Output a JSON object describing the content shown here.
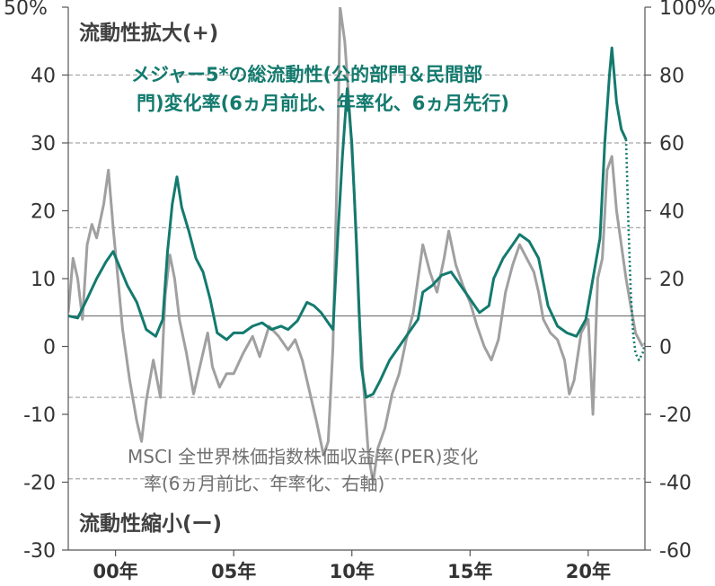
{
  "chart_data": {
    "type": "line",
    "title": "",
    "annotations": {
      "top": "流動性拡大(+)",
      "bottom": "流動性縮小(ー)",
      "green_label_line1": "メジャー5*の総流動性(公的部門＆民間部",
      "green_label_line2": "門)変化率(6ヵ月前比、年率化、6ヵ月先行)",
      "gray_label_line1": "MSCI 全世界株価指数株価収益率(PER)変化",
      "gray_label_line2": "率(6ヵ月前比、年率化、右軸)"
    },
    "colors": {
      "green": "#137a6e",
      "gray": "#a0a0a0"
    },
    "x_axis": {
      "range": [
        1998.0,
        2022.4
      ],
      "ticks": [
        {
          "value": 2000,
          "label": "00年"
        },
        {
          "value": 2005,
          "label": "05年"
        },
        {
          "value": 2010,
          "label": "10年"
        },
        {
          "value": 2015,
          "label": "15年"
        },
        {
          "value": 2020,
          "label": "20年"
        }
      ]
    },
    "y_left": {
      "range": [
        -30,
        50
      ],
      "ticks": [
        {
          "value": 50,
          "label": "50%"
        },
        {
          "value": 40,
          "label": "40"
        },
        {
          "value": 30,
          "label": "30"
        },
        {
          "value": 20,
          "label": "20"
        },
        {
          "value": 10,
          "label": "10"
        },
        {
          "value": 0,
          "label": "0"
        },
        {
          "value": -10,
          "label": "-10"
        },
        {
          "value": -20,
          "label": "-20"
        },
        {
          "value": -30,
          "label": "-30"
        }
      ]
    },
    "y_right": {
      "range": [
        -60,
        100
      ],
      "ticks": [
        {
          "value": 100,
          "label": "100%"
        },
        {
          "value": 80,
          "label": "80"
        },
        {
          "value": 60,
          "label": "60"
        },
        {
          "value": 40,
          "label": "40"
        },
        {
          "value": 20,
          "label": "20"
        },
        {
          "value": 0,
          "label": "0"
        },
        {
          "value": -20,
          "label": "-20"
        },
        {
          "value": -40,
          "label": "-40"
        },
        {
          "value": -60,
          "label": "-60"
        }
      ]
    },
    "grid": {
      "dashed_left_values": [
        40,
        30,
        17.5,
        -7.5,
        -19.5
      ],
      "solid_left_value": 4.5
    },
    "series": [
      {
        "axis": "left",
        "color": "#137a6e",
        "points": [
          [
            1998.0,
            4.5
          ],
          [
            1998.4,
            4.2
          ],
          [
            1998.8,
            7.0
          ],
          [
            1999.2,
            10.0
          ],
          [
            1999.6,
            12.5
          ],
          [
            1999.9,
            14.0
          ],
          [
            2000.2,
            11.5
          ],
          [
            2000.5,
            9.0
          ],
          [
            2000.9,
            6.5
          ],
          [
            2001.3,
            2.5
          ],
          [
            2001.7,
            1.5
          ],
          [
            2002.0,
            4.0
          ],
          [
            2002.2,
            14.0
          ],
          [
            2002.4,
            21.0
          ],
          [
            2002.6,
            25.0
          ],
          [
            2002.8,
            20.5
          ],
          [
            2003.1,
            17.0
          ],
          [
            2003.4,
            13.0
          ],
          [
            2003.7,
            11.0
          ],
          [
            2004.0,
            7.0
          ],
          [
            2004.3,
            2.0
          ],
          [
            2004.7,
            1.0
          ],
          [
            2005.0,
            2.0
          ],
          [
            2005.4,
            2.0
          ],
          [
            2005.8,
            3.0
          ],
          [
            2006.2,
            3.5
          ],
          [
            2006.6,
            2.5
          ],
          [
            2007.0,
            3.0
          ],
          [
            2007.3,
            2.5
          ],
          [
            2007.7,
            3.8
          ],
          [
            2008.1,
            6.5
          ],
          [
            2008.4,
            6.0
          ],
          [
            2008.7,
            5.0
          ],
          [
            2009.0,
            3.5
          ],
          [
            2009.2,
            2.5
          ],
          [
            2009.4,
            16.0
          ],
          [
            2009.6,
            28.0
          ],
          [
            2009.8,
            38.0
          ],
          [
            2010.0,
            30.0
          ],
          [
            2010.2,
            15.0
          ],
          [
            2010.4,
            -3.0
          ],
          [
            2010.6,
            -7.5
          ],
          [
            2010.9,
            -7.0
          ],
          [
            2011.2,
            -5.0
          ],
          [
            2011.6,
            -2.0
          ],
          [
            2012.0,
            0.0
          ],
          [
            2012.4,
            2.0
          ],
          [
            2012.8,
            4.0
          ],
          [
            2013.0,
            8.0
          ],
          [
            2013.4,
            9.0
          ],
          [
            2013.8,
            10.5
          ],
          [
            2014.2,
            11.0
          ],
          [
            2014.6,
            9.0
          ],
          [
            2015.0,
            7.0
          ],
          [
            2015.4,
            5.0
          ],
          [
            2015.8,
            6.0
          ],
          [
            2016.0,
            10.0
          ],
          [
            2016.4,
            13.0
          ],
          [
            2016.8,
            15.0
          ],
          [
            2017.1,
            16.5
          ],
          [
            2017.5,
            15.5
          ],
          [
            2017.9,
            13.0
          ],
          [
            2018.3,
            6.0
          ],
          [
            2018.7,
            3.0
          ],
          [
            2019.1,
            2.0
          ],
          [
            2019.5,
            1.5
          ],
          [
            2019.9,
            4.0
          ],
          [
            2020.2,
            10.0
          ],
          [
            2020.5,
            16.0
          ],
          [
            2020.7,
            30.0
          ],
          [
            2020.9,
            40.0
          ],
          [
            2021.0,
            44.0
          ],
          [
            2021.2,
            36.0
          ],
          [
            2021.4,
            32.0
          ],
          [
            2021.6,
            30.5
          ]
        ]
      },
      {
        "axis": "left",
        "color": "#137a6e",
        "style": "dotted",
        "points": [
          [
            2021.6,
            30.5
          ],
          [
            2021.7,
            18.0
          ],
          [
            2021.8,
            8.0
          ],
          [
            2021.9,
            2.0
          ],
          [
            2022.0,
            -1.0
          ],
          [
            2022.15,
            -2.0
          ],
          [
            2022.3,
            -1.0
          ],
          [
            2022.4,
            0.5
          ]
        ]
      },
      {
        "axis": "right",
        "color": "#a0a0a0",
        "points": [
          [
            1998.0,
            10.0
          ],
          [
            1998.2,
            26.0
          ],
          [
            1998.4,
            20.0
          ],
          [
            1998.6,
            8.0
          ],
          [
            1998.8,
            30.0
          ],
          [
            1999.0,
            36.0
          ],
          [
            1999.2,
            32.0
          ],
          [
            1999.5,
            42.0
          ],
          [
            1999.7,
            52.0
          ],
          [
            1999.9,
            35.0
          ],
          [
            2000.1,
            20.0
          ],
          [
            2000.3,
            5.0
          ],
          [
            2000.6,
            -10.0
          ],
          [
            2000.9,
            -22.0
          ],
          [
            2001.1,
            -28.0
          ],
          [
            2001.3,
            -16.0
          ],
          [
            2001.6,
            -4.0
          ],
          [
            2001.9,
            -15.0
          ],
          [
            2002.1,
            15.0
          ],
          [
            2002.3,
            27.0
          ],
          [
            2002.5,
            20.0
          ],
          [
            2002.7,
            8.0
          ],
          [
            2003.0,
            -2.0
          ],
          [
            2003.3,
            -14.0
          ],
          [
            2003.6,
            -5.0
          ],
          [
            2003.9,
            4.0
          ],
          [
            2004.1,
            -6.0
          ],
          [
            2004.4,
            -12.0
          ],
          [
            2004.7,
            -8.0
          ],
          [
            2005.0,
            -8.0
          ],
          [
            2005.4,
            -2.0
          ],
          [
            2005.8,
            3.0
          ],
          [
            2006.1,
            -3.0
          ],
          [
            2006.5,
            6.0
          ],
          [
            2006.9,
            3.0
          ],
          [
            2007.3,
            -1.0
          ],
          [
            2007.6,
            2.0
          ],
          [
            2007.9,
            -4.0
          ],
          [
            2008.2,
            -13.0
          ],
          [
            2008.5,
            -22.0
          ],
          [
            2008.8,
            -32.0
          ],
          [
            2009.0,
            -28.0
          ],
          [
            2009.2,
            0.0
          ],
          [
            2009.4,
            60.0
          ],
          [
            2009.5,
            100.0
          ],
          [
            2009.7,
            90.0
          ],
          [
            2009.9,
            70.0
          ],
          [
            2010.1,
            45.0
          ],
          [
            2010.3,
            10.0
          ],
          [
            2010.5,
            -12.0
          ],
          [
            2010.7,
            -32.0
          ],
          [
            2010.9,
            -40.0
          ],
          [
            2011.1,
            -30.0
          ],
          [
            2011.4,
            -24.0
          ],
          [
            2011.7,
            -14.0
          ],
          [
            2012.0,
            -8.0
          ],
          [
            2012.3,
            2.0
          ],
          [
            2012.6,
            10.0
          ],
          [
            2012.8,
            20.0
          ],
          [
            2013.0,
            30.0
          ],
          [
            2013.3,
            22.0
          ],
          [
            2013.6,
            16.0
          ],
          [
            2013.9,
            26.0
          ],
          [
            2014.1,
            34.0
          ],
          [
            2014.4,
            24.0
          ],
          [
            2014.7,
            18.0
          ],
          [
            2015.0,
            13.0
          ],
          [
            2015.3,
            6.0
          ],
          [
            2015.6,
            0.0
          ],
          [
            2015.9,
            -4.0
          ],
          [
            2016.2,
            2.0
          ],
          [
            2016.5,
            16.0
          ],
          [
            2016.8,
            24.0
          ],
          [
            2017.1,
            30.0
          ],
          [
            2017.4,
            26.0
          ],
          [
            2017.7,
            22.0
          ],
          [
            2017.9,
            16.0
          ],
          [
            2018.1,
            8.0
          ],
          [
            2018.4,
            4.0
          ],
          [
            2018.7,
            2.0
          ],
          [
            2019.0,
            -4.0
          ],
          [
            2019.2,
            -14.0
          ],
          [
            2019.4,
            -10.0
          ],
          [
            2019.7,
            4.0
          ],
          [
            2020.0,
            8.0
          ],
          [
            2020.2,
            -20.0
          ],
          [
            2020.4,
            20.0
          ],
          [
            2020.6,
            26.0
          ],
          [
            2020.8,
            52.0
          ],
          [
            2021.0,
            56.0
          ],
          [
            2021.2,
            40.0
          ],
          [
            2021.4,
            30.0
          ],
          [
            2021.6,
            20.0
          ],
          [
            2021.8,
            12.0
          ],
          [
            2022.0,
            4.0
          ],
          [
            2022.3,
            0.0
          ]
        ]
      }
    ]
  }
}
